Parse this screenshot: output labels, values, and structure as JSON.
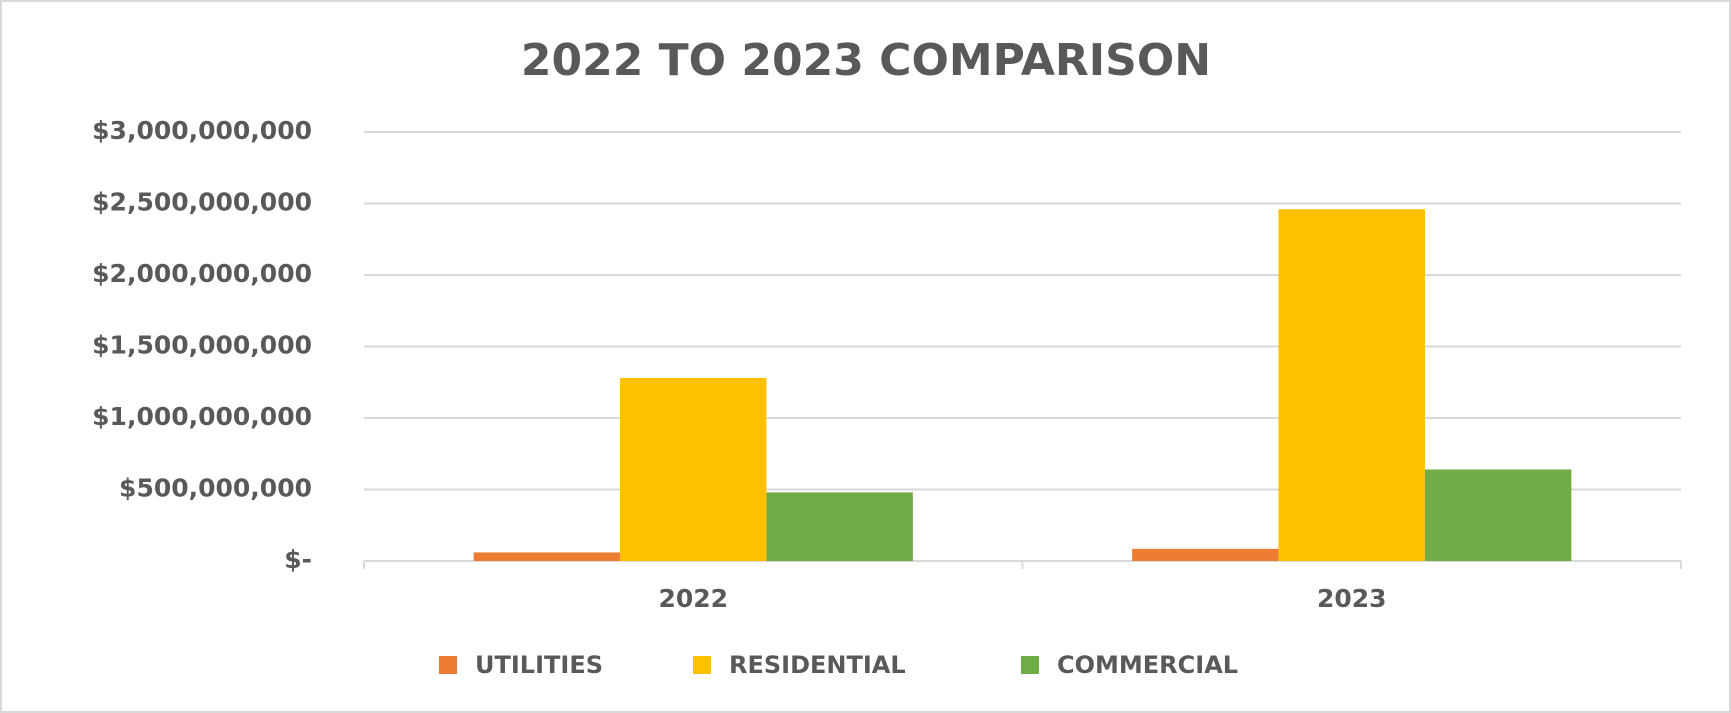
{
  "chart_data": {
    "type": "bar",
    "title": "2022 TO 2023 COMPARISON",
    "categories": [
      "2022",
      "2023"
    ],
    "series": [
      {
        "name": "UTILITIES",
        "color": "#ed7d31",
        "values": [
          60000000,
          85000000
        ]
      },
      {
        "name": "RESIDENTIAL",
        "color": "#ffc000",
        "values": [
          1280000000,
          2460000000
        ]
      },
      {
        "name": "COMMERCIAL",
        "color": "#70ad47",
        "values": [
          480000000,
          640000000
        ]
      }
    ],
    "ylim": [
      0,
      3000000000
    ],
    "yticks": [
      {
        "value": 0,
        "label": "$-"
      },
      {
        "value": 500000000,
        "label": "$500,000,000"
      },
      {
        "value": 1000000000,
        "label": "$1,000,000,000"
      },
      {
        "value": 1500000000,
        "label": "$1,500,000,000"
      },
      {
        "value": 2000000000,
        "label": "$2,000,000,000"
      },
      {
        "value": 2500000000,
        "label": "$2,500,000,000"
      },
      {
        "value": 3000000000,
        "label": "$3,000,000,000"
      }
    ],
    "grid": true,
    "legend": "bottom"
  }
}
